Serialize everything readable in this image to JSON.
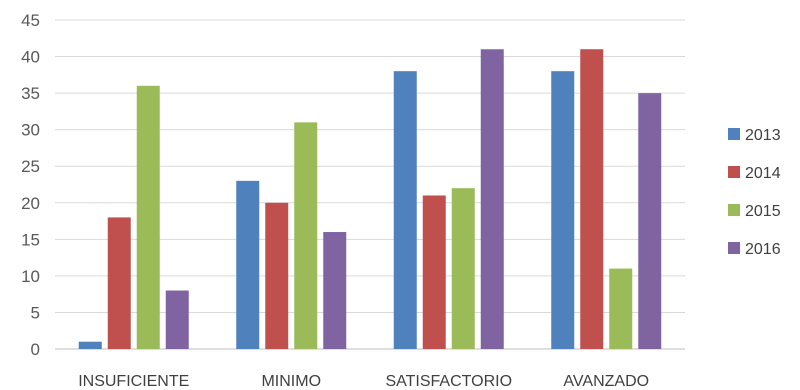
{
  "chart_data": {
    "type": "bar",
    "categories": [
      "INSUFICIENTE",
      "MINIMO",
      "SATISFACTORIO",
      "AVANZADO"
    ],
    "series": [
      {
        "name": "2013",
        "color": "#4F81BD",
        "values": [
          1,
          23,
          38,
          38
        ]
      },
      {
        "name": "2014",
        "color": "#C0504D",
        "values": [
          18,
          20,
          21,
          41
        ]
      },
      {
        "name": "2015",
        "color": "#9BBB59",
        "values": [
          36,
          31,
          22,
          11
        ]
      },
      {
        "name": "2016",
        "color": "#8064A2",
        "values": [
          8,
          16,
          41,
          35
        ]
      }
    ],
    "title": "",
    "xlabel": "",
    "ylabel": "",
    "ylim": [
      0,
      45
    ],
    "yticks": [
      0,
      5,
      10,
      15,
      20,
      25,
      30,
      35,
      40,
      45
    ],
    "grid": true,
    "legend_position": "right"
  }
}
